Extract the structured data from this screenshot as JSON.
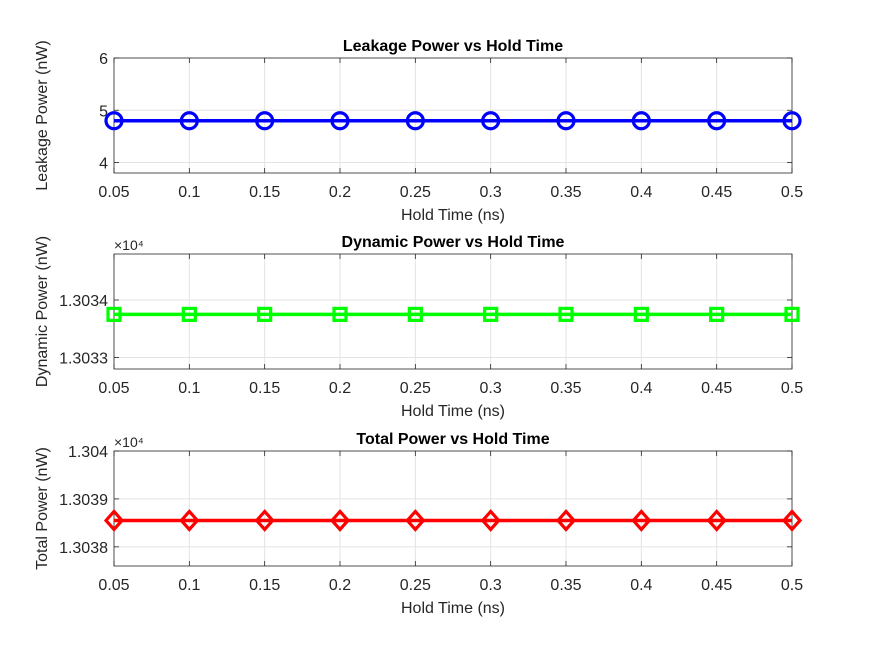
{
  "chart_data": [
    {
      "type": "line",
      "title": "Leakage Power vs Hold Time",
      "xlabel": "Hold Time (ns)",
      "ylabel": "Leakage Power (nW)",
      "exponent_label": "",
      "x": [
        0.05,
        0.1,
        0.15,
        0.2,
        0.25,
        0.3,
        0.35,
        0.4,
        0.45,
        0.5
      ],
      "xlim": [
        0.05,
        0.5
      ],
      "xticks": [
        "0.05",
        "0.1",
        "0.15",
        "0.2",
        "0.25",
        "0.3",
        "0.35",
        "0.4",
        "0.45",
        "0.5"
      ],
      "ylim": [
        3.8,
        6
      ],
      "yticks": [
        4,
        5,
        6
      ],
      "ytick_labels": [
        "4",
        "5",
        "6"
      ],
      "grid": true,
      "series": [
        {
          "name": "Leakage Power",
          "color": "#0000ff",
          "marker": "circle",
          "values": [
            4.8,
            4.8,
            4.8,
            4.8,
            4.8,
            4.8,
            4.8,
            4.8,
            4.8,
            4.8
          ]
        }
      ]
    },
    {
      "type": "line",
      "title": "Dynamic Power vs Hold Time",
      "xlabel": "Hold Time (ns)",
      "ylabel": "Dynamic Power (nW)",
      "exponent_label": "×10⁴",
      "x": [
        0.05,
        0.1,
        0.15,
        0.2,
        0.25,
        0.3,
        0.35,
        0.4,
        0.45,
        0.5
      ],
      "xlim": [
        0.05,
        0.5
      ],
      "xticks": [
        "0.05",
        "0.1",
        "0.15",
        "0.2",
        "0.25",
        "0.3",
        "0.35",
        "0.4",
        "0.45",
        "0.5"
      ],
      "ylim": [
        13032.8,
        13034.8
      ],
      "yticks": [
        13033,
        13034
      ],
      "ytick_labels": [
        "1.3033",
        "1.3034"
      ],
      "grid": true,
      "series": [
        {
          "name": "Dynamic Power",
          "color": "#00ff00",
          "marker": "square",
          "values": [
            13033.75,
            13033.75,
            13033.75,
            13033.75,
            13033.75,
            13033.75,
            13033.75,
            13033.75,
            13033.75,
            13033.75
          ]
        }
      ]
    },
    {
      "type": "line",
      "title": "Total Power vs Hold Time",
      "xlabel": "Hold Time (ns)",
      "ylabel": "Total Power (nW)",
      "exponent_label": "×10⁴",
      "x": [
        0.05,
        0.1,
        0.15,
        0.2,
        0.25,
        0.3,
        0.35,
        0.4,
        0.45,
        0.5
      ],
      "xlim": [
        0.05,
        0.5
      ],
      "xticks": [
        "0.05",
        "0.1",
        "0.15",
        "0.2",
        "0.25",
        "0.3",
        "0.35",
        "0.4",
        "0.45",
        "0.5"
      ],
      "ylim": [
        13037.6,
        13040
      ],
      "yticks": [
        13038,
        13039,
        13040
      ],
      "ytick_labels": [
        "1.3038",
        "1.3039",
        "1.304"
      ],
      "grid": true,
      "series": [
        {
          "name": "Total Power",
          "color": "#ff0000",
          "marker": "diamond",
          "values": [
            13038.55,
            13038.55,
            13038.55,
            13038.55,
            13038.55,
            13038.55,
            13038.55,
            13038.55,
            13038.55,
            13038.55
          ]
        }
      ]
    }
  ]
}
